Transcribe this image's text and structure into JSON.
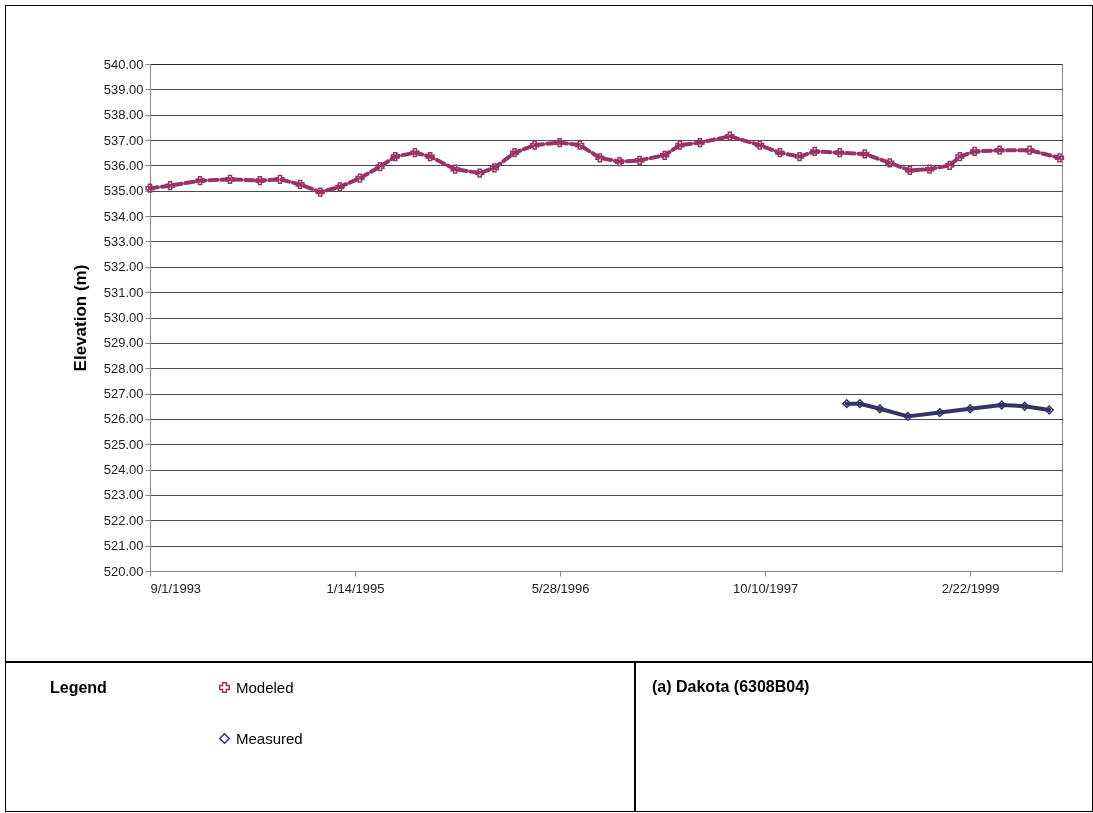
{
  "chart_data": {
    "type": "line",
    "title": "(a) Dakota (6308B04)",
    "ylabel": "Elevation (m)",
    "legend_title": "Legend",
    "legend": "bottom left",
    "grid": "y",
    "xlim": [
      "1993-09-01",
      "1999-10-04"
    ],
    "xticks": [
      {
        "value": "1993-09-01",
        "label": "9/1/1993"
      },
      {
        "value": "1995-01-14",
        "label": "1/14/1995"
      },
      {
        "value": "1996-05-28",
        "label": "5/28/1996"
      },
      {
        "value": "1997-10-10",
        "label": "10/10/1997"
      },
      {
        "value": "1999-02-22",
        "label": "2/22/1999"
      }
    ],
    "ylim": [
      520,
      540
    ],
    "yticks": [
      {
        "value": 520,
        "label": "520.00"
      },
      {
        "value": 521,
        "label": "521.00"
      },
      {
        "value": 522,
        "label": "522.00"
      },
      {
        "value": 523,
        "label": "523.00"
      },
      {
        "value": 524,
        "label": "524.00"
      },
      {
        "value": 525,
        "label": "525.00"
      },
      {
        "value": 526,
        "label": "526.00"
      },
      {
        "value": 527,
        "label": "527.00"
      },
      {
        "value": 528,
        "label": "528.00"
      },
      {
        "value": 529,
        "label": "529.00"
      },
      {
        "value": 530,
        "label": "530.00"
      },
      {
        "value": 531,
        "label": "531.00"
      },
      {
        "value": 532,
        "label": "532.00"
      },
      {
        "value": 533,
        "label": "533.00"
      },
      {
        "value": 534,
        "label": "534.00"
      },
      {
        "value": 535,
        "label": "535.00"
      },
      {
        "value": 536,
        "label": "536.00"
      },
      {
        "value": 537,
        "label": "537.00"
      },
      {
        "value": 538,
        "label": "538.00"
      },
      {
        "value": 539,
        "label": "539.00"
      },
      {
        "value": 540,
        "label": "540.00"
      }
    ],
    "series": [
      {
        "name": "Modeled",
        "color": "#993366",
        "marker": "cross",
        "line_style": "dashed",
        "x": [
          "1993-09-01",
          "1993-10-20",
          "1994-01-01",
          "1994-03-15",
          "1994-05-27",
          "1994-07-15",
          "1994-09-02",
          "1994-10-21",
          "1994-12-08",
          "1995-01-26",
          "1995-03-16",
          "1995-04-22",
          "1995-06-09",
          "1995-07-16",
          "1995-09-15",
          "1995-11-14",
          "1995-12-20",
          "1996-02-07",
          "1996-03-27",
          "1996-05-27",
          "1996-07-15",
          "1996-09-02",
          "1996-10-20",
          "1996-12-08",
          "1997-02-07",
          "1997-03-16",
          "1997-05-04",
          "1997-07-16",
          "1997-09-27",
          "1997-11-15",
          "1998-01-02",
          "1998-02-08",
          "1998-04-10",
          "1998-06-10",
          "1998-08-10",
          "1998-09-28",
          "1998-11-15",
          "1999-01-03",
          "1999-01-28",
          "1999-03-05",
          "1999-05-05",
          "1999-07-17",
          "1999-09-28"
        ],
        "values": [
          535.1,
          535.2,
          535.4,
          535.45,
          535.4,
          535.45,
          535.25,
          534.95,
          535.15,
          535.5,
          535.95,
          536.35,
          536.5,
          536.35,
          535.85,
          535.7,
          535.9,
          536.5,
          536.8,
          536.9,
          536.8,
          536.3,
          536.15,
          536.2,
          536.4,
          536.8,
          536.9,
          537.15,
          536.8,
          536.5,
          536.35,
          536.55,
          536.5,
          536.45,
          536.1,
          535.8,
          535.85,
          536.0,
          536.35,
          536.55,
          536.6,
          536.6,
          536.3
        ]
      },
      {
        "name": "Measured",
        "color": "#333366",
        "marker": "diamond",
        "line_style": "solid",
        "x": [
          "1998-04-27",
          "1998-05-29",
          "1998-07-17",
          "1998-09-23",
          "1998-12-10",
          "1999-02-22",
          "1999-05-10",
          "1999-07-05",
          "1999-09-03"
        ],
        "values": [
          526.6,
          526.6,
          526.4,
          526.1,
          526.25,
          526.4,
          526.55,
          526.5,
          526.35
        ]
      }
    ]
  }
}
